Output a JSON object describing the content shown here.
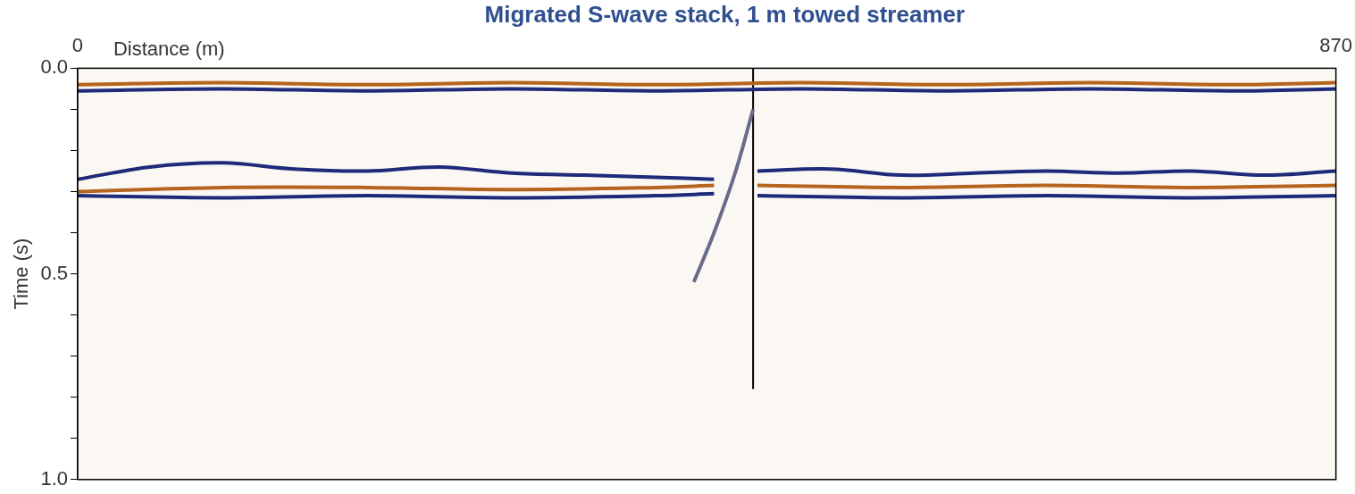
{
  "chart_data": {
    "type": "line",
    "title": "Migrated S-wave stack, 1 m towed streamer",
    "x_label": "Distance (m)",
    "y_label": "Time (s)",
    "xlim": [
      0,
      870
    ],
    "xticks": [
      0,
      870
    ],
    "ylim": [
      0,
      1
    ],
    "yticks": [
      {
        "value": 0,
        "label": "0.0"
      },
      {
        "value": 0.5,
        "label": "0.5"
      },
      {
        "value": 1,
        "label": "1.0"
      }
    ],
    "grid": true,
    "grid_lines": [
      0.1,
      0.2,
      0.3,
      0.4,
      0.5,
      0.6,
      0.7,
      0.8,
      0.9
    ],
    "vertical_line": {
      "x": 467,
      "y": [
        0,
        0.78
      ],
      "color": "#000000"
    },
    "series": [
      {
        "color": "#b5651d",
        "x": [
          0,
          100,
          200,
          300,
          400,
          500,
          600,
          700,
          800,
          870
        ],
        "values": [
          0.04,
          0.035,
          0.04,
          0.035,
          0.04,
          0.035,
          0.04,
          0.035,
          0.04,
          0.035
        ]
      },
      {
        "color": "#1f2b7a",
        "x": [
          0,
          100,
          200,
          300,
          400,
          500,
          600,
          700,
          800,
          870
        ],
        "values": [
          0.055,
          0.05,
          0.055,
          0.05,
          0.055,
          0.05,
          0.055,
          0.05,
          0.055,
          0.05
        ]
      },
      {
        "color": "#1f2b7a",
        "x": [
          0,
          50,
          100,
          150,
          200,
          250,
          300,
          350,
          400,
          440
        ],
        "values": [
          0.27,
          0.24,
          0.23,
          0.245,
          0.25,
          0.24,
          0.255,
          0.26,
          0.265,
          0.27
        ]
      },
      {
        "color": "#b5651d",
        "x": [
          0,
          100,
          200,
          300,
          400,
          440
        ],
        "values": [
          0.3,
          0.29,
          0.29,
          0.295,
          0.29,
          0.285
        ]
      },
      {
        "color": "#1f2b7a",
        "x": [
          0,
          100,
          200,
          300,
          400,
          440
        ],
        "values": [
          0.31,
          0.315,
          0.31,
          0.315,
          0.31,
          0.305
        ]
      },
      {
        "color": "#1f2b7a",
        "x": [
          470,
          520,
          570,
          620,
          670,
          720,
          770,
          820,
          870
        ],
        "values": [
          0.25,
          0.245,
          0.26,
          0.255,
          0.25,
          0.255,
          0.25,
          0.26,
          0.25
        ]
      },
      {
        "color": "#b5651d",
        "x": [
          470,
          570,
          670,
          770,
          870
        ],
        "values": [
          0.285,
          0.29,
          0.285,
          0.29,
          0.285
        ]
      },
      {
        "color": "#1f2b7a",
        "x": [
          470,
          570,
          670,
          770,
          870
        ],
        "values": [
          0.31,
          0.315,
          0.31,
          0.315,
          0.31
        ]
      },
      {
        "color": "#6a6a8a",
        "x": [
          426,
          440,
          455,
          467
        ],
        "values": [
          0.52,
          0.4,
          0.25,
          0.1
        ]
      }
    ]
  }
}
